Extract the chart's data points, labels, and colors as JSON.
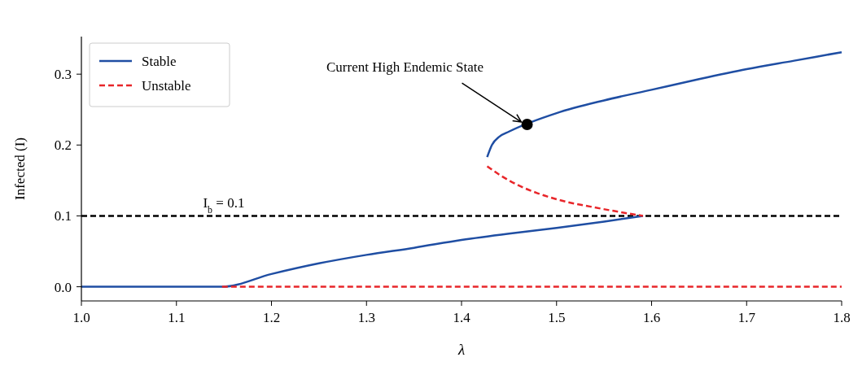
{
  "chart_data": {
    "type": "line",
    "xlabel": "λ",
    "ylabel": "Infected (I)",
    "xlim": [
      1.0,
      1.8
    ],
    "ylim": [
      -0.02,
      0.353
    ],
    "xticks": [
      {
        "value": 1.0,
        "label": "1.0"
      },
      1.1,
      1.2,
      1.3,
      1.4,
      1.5,
      1.6,
      1.7,
      1.8
    ],
    "yticks": [
      {
        "value": 0,
        "label": "0.0"
      },
      0.1,
      0.2,
      0.3
    ],
    "grid": false,
    "legend": "top left",
    "marker": "none",
    "series": [
      {
        "name": "Stable",
        "color": "#1f4ea3",
        "line_style": "solid",
        "x": [
          1.0,
          1.148,
          1.2,
          1.25,
          1.3,
          1.35,
          1.4,
          1.45,
          1.5,
          1.55,
          1.591
        ],
        "values": [
          0,
          0,
          0.018,
          0.033,
          0.045,
          0.055,
          0.066,
          0.075,
          0.083,
          0.092,
          0.1
        ]
      },
      {
        "name": "Unstable",
        "color": "#e8262a",
        "line_style": "dashed",
        "x": [
          1.148,
          1.8
        ],
        "values": [
          0,
          0
        ]
      },
      {
        "color": "#1f4ea3",
        "line_style": "solid",
        "x": [
          1.427,
          1.432,
          1.44,
          1.45,
          1.5,
          1.55,
          1.6,
          1.65,
          1.7,
          1.75,
          1.8
        ],
        "values": [
          0.183,
          0.2,
          0.212,
          0.219,
          0.245,
          0.263,
          0.278,
          0.293,
          0.307,
          0.319,
          0.331
        ]
      },
      {
        "color": "#e8262a",
        "line_style": "dashed",
        "x": [
          1.427,
          1.44,
          1.46,
          1.48,
          1.51,
          1.536,
          1.56,
          1.591
        ],
        "values": [
          0.17,
          0.158,
          0.143,
          0.132,
          0.12,
          0.113,
          0.107,
          0.1
        ]
      },
      {
        "type": "scatter",
        "color": "#000000",
        "marker": "circle",
        "x": [
          1.469
        ],
        "values": [
          0.229
        ]
      }
    ],
    "ref_lines": [
      {
        "axis": "y",
        "value": 0.1,
        "label": "I$_{b}$ = 0.1",
        "color": "#000000",
        "line_style": "dashed"
      }
    ],
    "annotations": [
      {
        "text": "Current High Endemic State",
        "x": 1.469,
        "y": 0.229
      }
    ]
  }
}
